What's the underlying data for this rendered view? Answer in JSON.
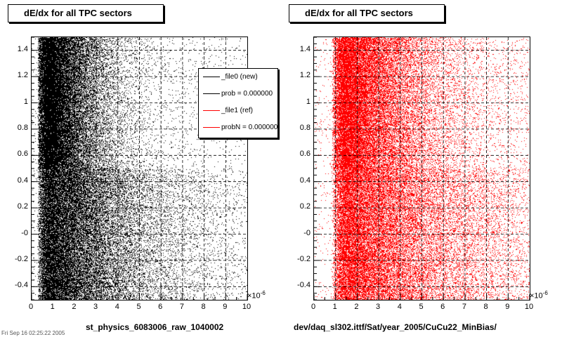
{
  "footer_date": "Fri Sep 16 02:25:22 2005",
  "legend": {
    "entries": [
      {
        "label": "_file0 (new)",
        "color": "#000000"
      },
      {
        "label": "prob = 0.000000",
        "color": "#000000"
      },
      {
        "label": "_file1 (ref)",
        "color": "#ff0000"
      },
      {
        "label": "probN = 0.000000",
        "color": "#ff0000"
      }
    ]
  },
  "chart_data": [
    {
      "type": "scatter",
      "title": "dE/dx for all TPC sectors",
      "xlabel": "st_physics_6083006_raw_1040002",
      "ylabel": "",
      "x_exponent_base": "×10",
      "x_exponent_power": "-6",
      "xlim": [
        0,
        10
      ],
      "ylim": [
        -0.5,
        1.5
      ],
      "x_ticks": [
        "0",
        "1",
        "2",
        "3",
        "4",
        "5",
        "6",
        "7",
        "8",
        "9",
        "10"
      ],
      "y_ticks": [
        "-0.4",
        "-0.2",
        "-0",
        "0.2",
        "0.4",
        "0.6",
        "0.8",
        "1",
        "1.2",
        "1.4"
      ],
      "grid": true,
      "marker_color": "#000000",
      "legend_placement": "top-right",
      "density": {
        "x_peak": 0.9,
        "band_upper_y_range": [
          0.5,
          1.5
        ],
        "band_upper_x_extent": 3.0,
        "band_lower_y_range": [
          -0.5,
          0.5
        ],
        "band_lower_x_extent": 6.5,
        "band_edge_y": 0.5
      }
    },
    {
      "type": "scatter",
      "title": "dE/dx for all TPC sectors",
      "xlabel": "dev/daq_sl302.ittf/Sat/year_2005/CuCu22_MinBias/",
      "ylabel": "",
      "x_exponent_base": "×10",
      "x_exponent_power": "-6",
      "xlim": [
        0,
        10
      ],
      "ylim": [
        -0.5,
        1.5
      ],
      "x_ticks": [
        "0",
        "1",
        "2",
        "3",
        "4",
        "5",
        "6",
        "7",
        "8",
        "9",
        "10"
      ],
      "y_ticks": [
        "-0.4",
        "-0.2",
        "-0",
        "0.2",
        "0.4",
        "0.6",
        "0.8",
        "1",
        "1.2",
        "1.4"
      ],
      "grid": true,
      "marker_color": "#ff0000",
      "density": {
        "x_peak": 2.0,
        "band_upper_y_range": [
          0.5,
          1.5
        ],
        "band_upper_x_extent": 5.0,
        "band_lower_y_range": [
          -0.5,
          0.5
        ],
        "band_lower_x_extent": 9.5,
        "band_edge_y": 0.5
      }
    }
  ]
}
